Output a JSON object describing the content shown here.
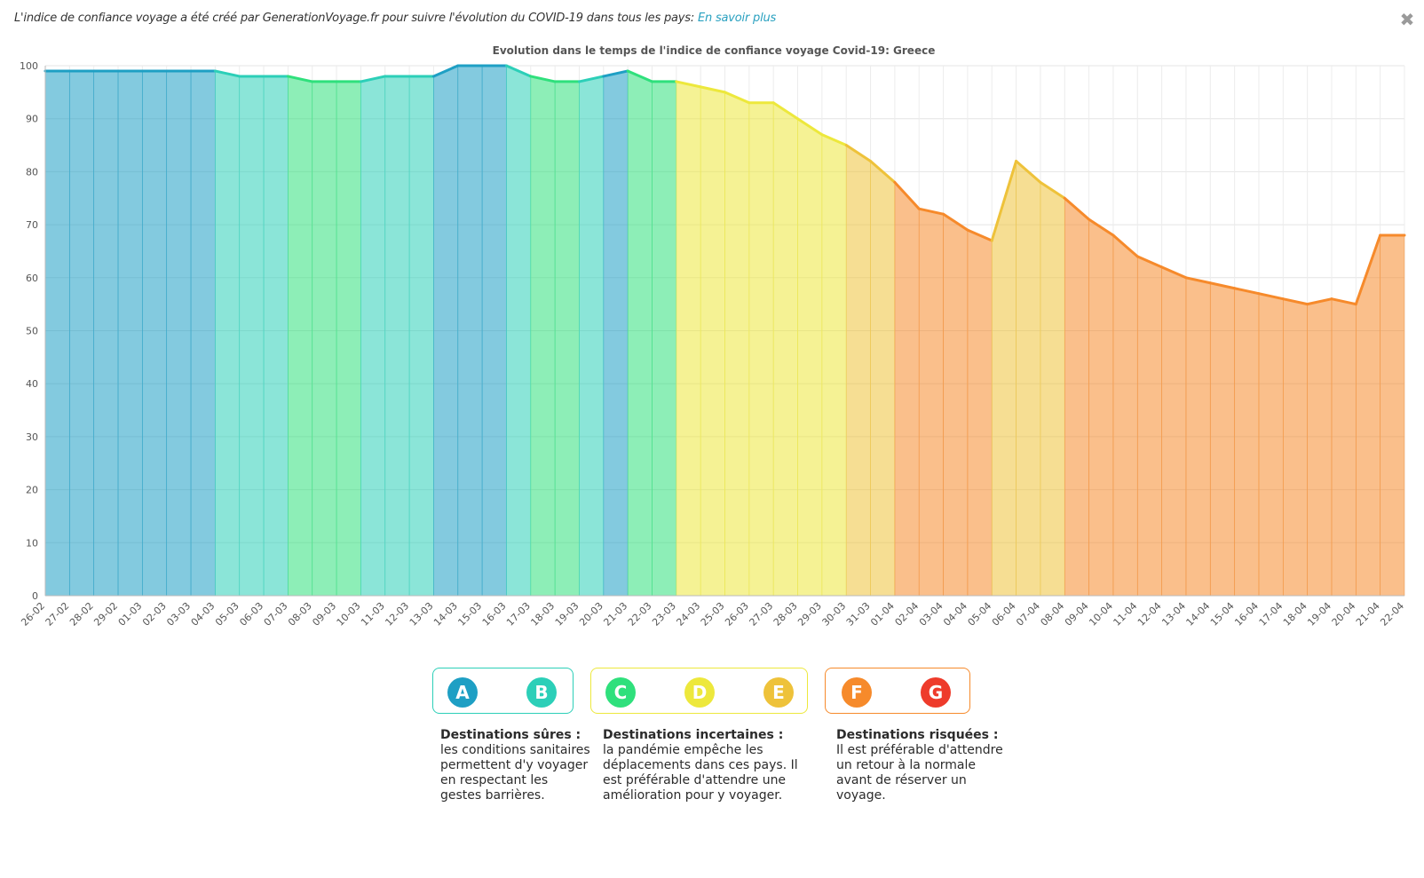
{
  "header": {
    "intro_text": "L'indice de confiance voyage a été créé par GenerationVoyage.fr pour suivre l'évolution du COVID-19 dans tous les pays:",
    "link_text": "En savoir plus",
    "close_icon": "close-icon"
  },
  "chart_data": {
    "type": "area",
    "title": "Evolution dans le temps de l'indice de confiance voyage Covid-19: Greece",
    "xlabel": "",
    "ylabel": "",
    "ylim": [
      0,
      100
    ],
    "yticks": [
      0,
      10,
      20,
      30,
      40,
      50,
      60,
      70,
      80,
      90,
      100
    ],
    "grid": true,
    "categories": [
      "26-02",
      "27-02",
      "28-02",
      "29-02",
      "01-03",
      "02-03",
      "03-03",
      "04-03",
      "05-03",
      "06-03",
      "07-03",
      "08-03",
      "09-03",
      "10-03",
      "11-03",
      "12-03",
      "13-03",
      "14-03",
      "15-03",
      "16-03",
      "17-03",
      "18-03",
      "19-03",
      "20-03",
      "21-03",
      "22-03",
      "23-03",
      "24-03",
      "25-03",
      "26-03",
      "27-03",
      "28-03",
      "29-03",
      "30-03",
      "31-03",
      "01-04",
      "02-04",
      "03-04",
      "04-04",
      "05-04",
      "06-04",
      "07-04",
      "08-04",
      "09-04",
      "10-04",
      "11-04",
      "12-04",
      "13-04",
      "14-04",
      "15-04",
      "16-04",
      "17-04",
      "18-04",
      "19-04",
      "20-04",
      "21-04",
      "22-04"
    ],
    "values": [
      99,
      99,
      99,
      99,
      99,
      99,
      99,
      99,
      98,
      98,
      98,
      97,
      97,
      97,
      98,
      98,
      98,
      100,
      100,
      100,
      98,
      97,
      97,
      98,
      99,
      97,
      97,
      96,
      95,
      93,
      93,
      90,
      87,
      85,
      82,
      78,
      73,
      72,
      69,
      67,
      82,
      78,
      75,
      71,
      68,
      64,
      62,
      60,
      59,
      58,
      57,
      56,
      55,
      56,
      55,
      68,
      68
    ],
    "grade_colors": {
      "A": "#1e9fc4",
      "B": "#2ccfb8",
      "C": "#2fe07c",
      "D": "#ede83c",
      "E": "#eec23a",
      "F": "#f68a2b",
      "G": "#ee3b2b"
    },
    "segment_grades": [
      "A",
      "A",
      "A",
      "A",
      "A",
      "A",
      "A",
      "B",
      "B",
      "B",
      "C",
      "C",
      "C",
      "B",
      "B",
      "B",
      "A",
      "A",
      "A",
      "B",
      "C",
      "C",
      "B",
      "A",
      "C",
      "C",
      "D",
      "D",
      "D",
      "D",
      "D",
      "D",
      "D",
      "E",
      "E",
      "F",
      "F",
      "F",
      "F",
      "E",
      "E",
      "E",
      "F",
      "F",
      "F",
      "F",
      "F",
      "F",
      "F",
      "F",
      "F",
      "F",
      "F",
      "F",
      "F",
      "F"
    ]
  },
  "legend": {
    "groups": [
      {
        "badges": [
          "A",
          "B"
        ],
        "border_color": "#2ccfb8",
        "title": "Destinations sûres :",
        "text": "les conditions sanitaires permettent d'y voyager en respectant les gestes barrières."
      },
      {
        "badges": [
          "C",
          "D",
          "E"
        ],
        "border_color": "#ede83c",
        "title": "Destinations incertaines :",
        "text": "la pandémie empêche les déplacements dans ces pays. Il est préférable d'attendre une amélioration pour y voyager."
      },
      {
        "badges": [
          "F",
          "G"
        ],
        "border_color": "#f68a2b",
        "title": "Destinations risquées :",
        "text": "Il est préférable d'attendre un retour à la normale avant de réserver un voyage."
      }
    ]
  }
}
